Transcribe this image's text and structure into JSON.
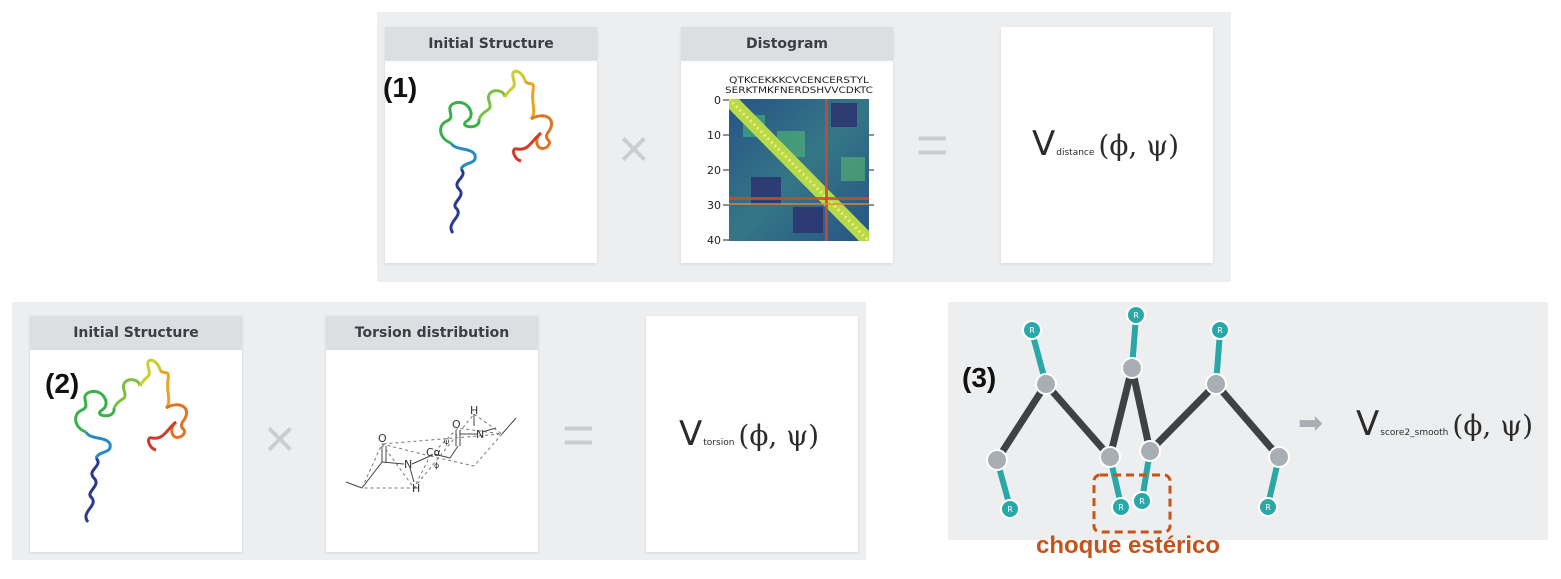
{
  "row1": {
    "tag": "(1)",
    "card1_title": "Initial Structure",
    "card2_title": "Distogram",
    "distogram": {
      "seq_top": "QTKCEKKKCVCENCERSTYL",
      "seq_bottom": "SERKTMKFNERDSHVVCDKTC",
      "ticks": [
        "0",
        "10",
        "20",
        "30",
        "40"
      ]
    },
    "operator": "×",
    "equals": "=",
    "formula": {
      "v": "V",
      "sub": "distance",
      "args": "(ϕ, ψ)"
    }
  },
  "row2": {
    "tag": "(2)",
    "card1_title": "Initial Structure",
    "card2_title": "Torsion distribution",
    "operator": "×",
    "equals": "=",
    "formula": {
      "v": "V",
      "sub": "torsion",
      "args": "(ϕ, ψ)"
    },
    "torsion_labels": {
      "O1": "O",
      "O2": "O",
      "N1": "N",
      "N2": "N",
      "H1": "H",
      "H2": "H",
      "Ca": "Cα",
      "phi": "ϕ",
      "psi": "ψ"
    }
  },
  "row3": {
    "tag": "(3)",
    "residue_label": "R",
    "arrow": "➡",
    "formula": {
      "v": "V",
      "sub": "score2_smooth",
      "args": "(ϕ, ψ)"
    },
    "clash_label": "choque estérico"
  },
  "colors": {
    "panel_bg": "#eceeef",
    "card_header": "#dcdfe2",
    "teal": "#2aa8a8",
    "bond": "#3c4245",
    "clash": "#c4541a"
  }
}
